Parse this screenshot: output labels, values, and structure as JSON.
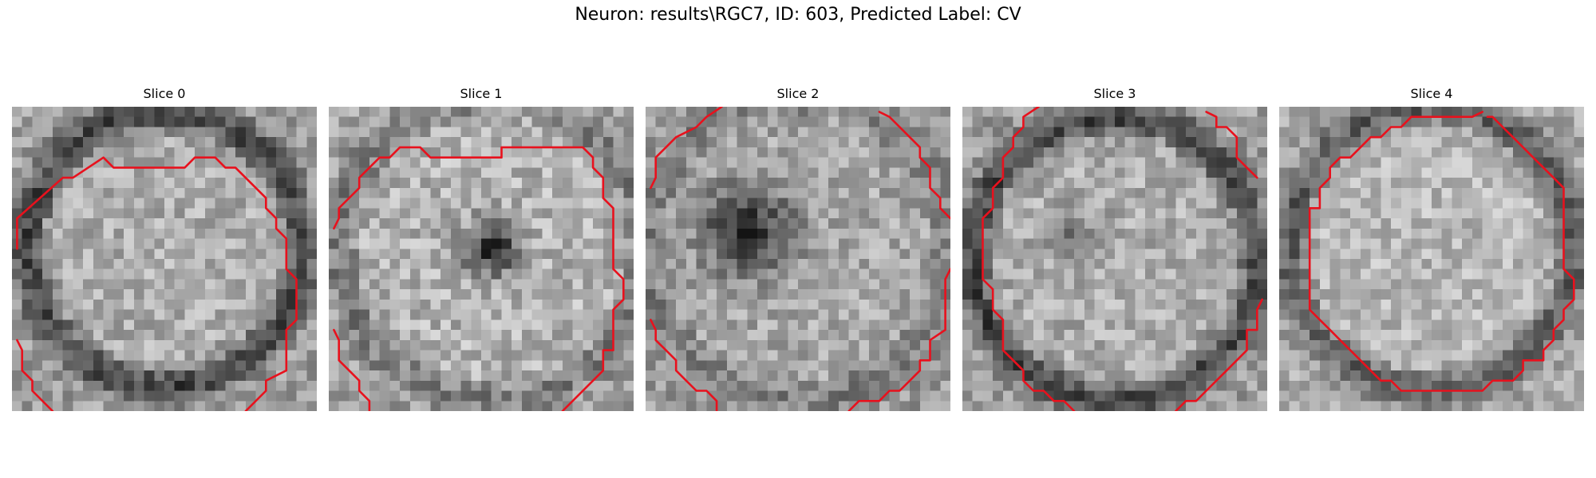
{
  "figure": {
    "title": "Neuron: results\\RGC7, ID: 603, Predicted Label: CV"
  },
  "panels": [
    {
      "title": "Slice 0"
    },
    {
      "title": "Slice 1"
    },
    {
      "title": "Slice 2"
    },
    {
      "title": "Slice 3"
    },
    {
      "title": "Slice 4"
    }
  ],
  "colors": {
    "contour": "#e8111d",
    "background": "#ffffff",
    "colormap": "grayscale"
  }
}
